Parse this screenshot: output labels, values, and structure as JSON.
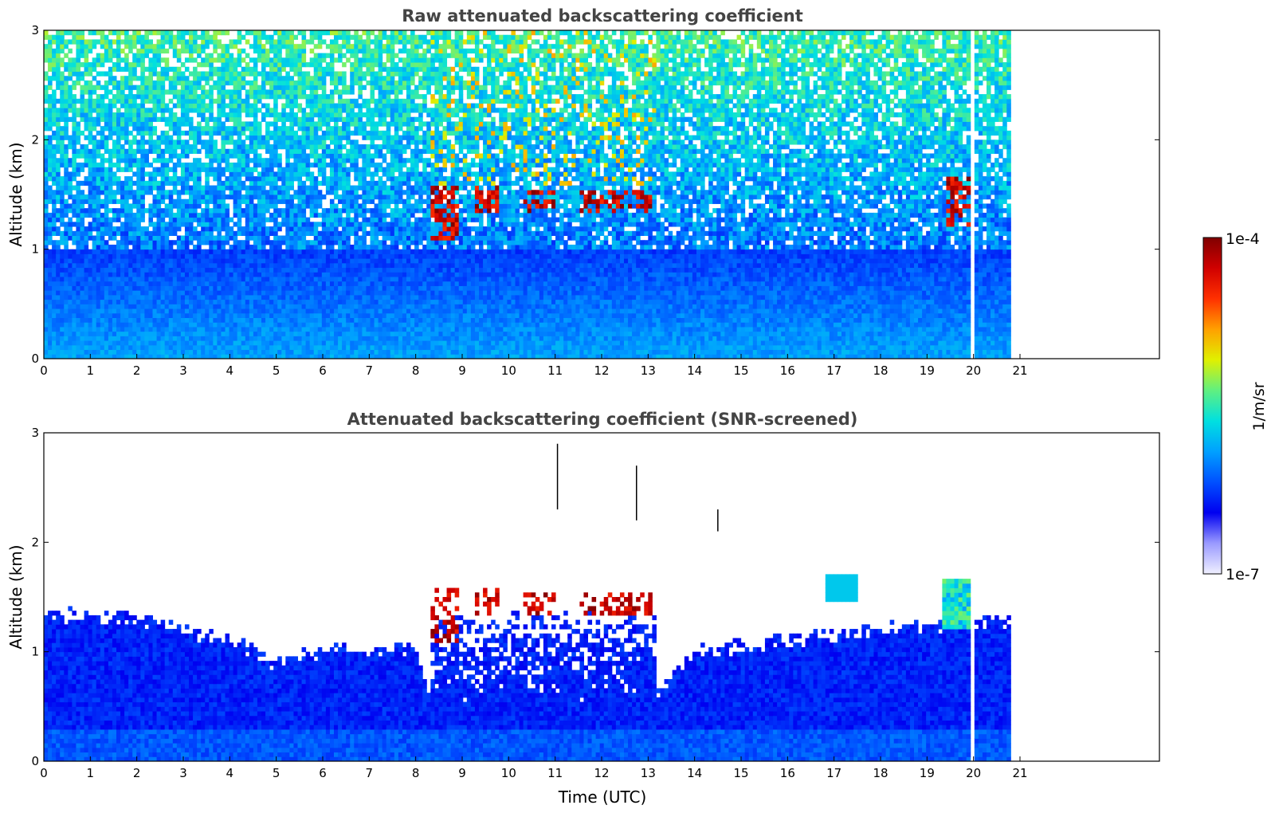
{
  "chart_data": [
    {
      "type": "heatmap",
      "title": "Raw attenuated backscattering coefficient",
      "xlabel": "",
      "ylabel": "Altitude (km)",
      "xlim": [
        0,
        24
      ],
      "ylim": [
        0,
        3
      ],
      "x_ticks": [
        "0",
        "1",
        "2",
        "3",
        "4",
        "5",
        "6",
        "7",
        "8",
        "9",
        "10",
        "11",
        "12",
        "13",
        "14",
        "15",
        "16",
        "17",
        "18",
        "19",
        "20",
        "21"
      ],
      "y_ticks": [
        "0",
        "1",
        "2",
        "3"
      ],
      "data_end_time": 20.8,
      "dropout_time": 19.97,
      "cloud_base_km": 1.35,
      "cloud_period": [
        8.3,
        13.2
      ],
      "cloud_segments": [
        {
          "x": [
            8.3,
            8.9
          ],
          "alt": [
            1.1,
            1.6
          ]
        },
        {
          "x": [
            9.3,
            9.8
          ],
          "alt": [
            1.35,
            1.6
          ]
        },
        {
          "x": [
            10.3,
            11.0
          ],
          "alt": [
            1.35,
            1.55
          ]
        },
        {
          "x": [
            11.5,
            13.1
          ],
          "alt": [
            1.35,
            1.55
          ]
        },
        {
          "x": [
            19.4,
            19.9
          ],
          "alt": [
            1.2,
            1.65
          ]
        }
      ],
      "noise_profile": "signal noisy above ~1 km, dense boundary layer below ~1 km"
    },
    {
      "type": "heatmap",
      "title": "Attenuated backscattering coefficient (SNR-screened)",
      "xlabel": "Time (UTC)",
      "ylabel": "Altitude (km)",
      "xlim": [
        0,
        24
      ],
      "ylim": [
        0,
        3
      ],
      "x_ticks": [
        "0",
        "1",
        "2",
        "3",
        "4",
        "5",
        "6",
        "7",
        "8",
        "9",
        "10",
        "11",
        "12",
        "13",
        "14",
        "15",
        "16",
        "17",
        "18",
        "19",
        "20",
        "21"
      ],
      "y_ticks": [
        "0",
        "1",
        "2",
        "3"
      ],
      "data_end_time": 20.8,
      "dropout_time": 19.97,
      "boundary_layer_top": [
        {
          "t": 0,
          "alt": 1.35
        },
        {
          "t": 2,
          "alt": 1.3
        },
        {
          "t": 4,
          "alt": 1.1
        },
        {
          "t": 5,
          "alt": 0.9
        },
        {
          "t": 6,
          "alt": 1.0
        },
        {
          "t": 8,
          "alt": 1.05
        },
        {
          "t": 8.3,
          "alt": 0.6
        },
        {
          "t": 13.2,
          "alt": 0.6
        },
        {
          "t": 14,
          "alt": 1.0
        },
        {
          "t": 16,
          "alt": 1.1
        },
        {
          "t": 18,
          "alt": 1.2
        },
        {
          "t": 20.8,
          "alt": 1.3
        }
      ],
      "cloud_period": [
        8.3,
        13.2
      ],
      "high_spikes": [
        {
          "t": 11.05,
          "alt": [
            2.3,
            2.9
          ]
        },
        {
          "t": 12.75,
          "alt": [
            2.2,
            2.7
          ]
        },
        {
          "t": 14.5,
          "alt": [
            2.1,
            2.3
          ]
        }
      ]
    }
  ],
  "colorbar": {
    "label": "1/m/sr",
    "min_label": "1e-7",
    "max_label": "1e-4",
    "colormap": [
      "#f0f0ff",
      "#9a9aff",
      "#0000f0",
      "#0050ff",
      "#00a0ff",
      "#00e0e0",
      "#60f080",
      "#e0f000",
      "#ffa000",
      "#ff3000",
      "#d00000",
      "#800000"
    ]
  }
}
